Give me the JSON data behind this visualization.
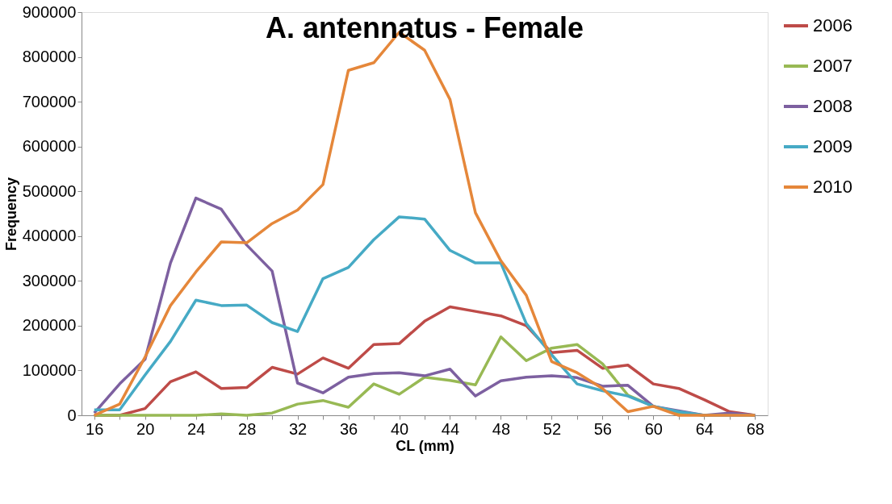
{
  "chart_data": {
    "type": "line",
    "title": "A. antennatus - Female",
    "xlabel": "CL (mm)",
    "ylabel": "Frequency",
    "categories": [
      "16",
      null,
      "20",
      null,
      "24",
      null,
      "28",
      null,
      "32",
      null,
      "36",
      null,
      "40",
      null,
      "44",
      null,
      "48",
      null,
      "52",
      null,
      "56",
      null,
      "60",
      null,
      "64",
      null,
      "68"
    ],
    "series": [
      {
        "name": "2006",
        "color": "#be4b48",
        "values": [
          0,
          0,
          15000,
          75000,
          97000,
          60000,
          62000,
          107000,
          92000,
          128000,
          105000,
          158000,
          160000,
          210000,
          242000,
          232000,
          222000,
          200000,
          140000,
          145000,
          105000,
          112000,
          70000,
          60000,
          35000,
          8000,
          0
        ]
      },
      {
        "name": "2007",
        "color": "#98b954",
        "values": [
          0,
          0,
          0,
          0,
          0,
          3000,
          0,
          5000,
          25000,
          33000,
          18000,
          70000,
          47000,
          85000,
          78000,
          68000,
          175000,
          122000,
          150000,
          158000,
          115000,
          45000,
          20000,
          5000,
          0,
          null,
          null
        ]
      },
      {
        "name": "2008",
        "color": "#7d60a0",
        "values": [
          5000,
          70000,
          125000,
          340000,
          485000,
          460000,
          380000,
          322000,
          72000,
          50000,
          85000,
          93000,
          95000,
          88000,
          103000,
          43000,
          77000,
          85000,
          88000,
          84000,
          65000,
          67000,
          20000,
          10000,
          0,
          5000,
          0
        ]
      },
      {
        "name": "2009",
        "color": "#46aac5",
        "values": [
          12000,
          12000,
          90000,
          165000,
          257000,
          245000,
          246000,
          207000,
          187000,
          305000,
          330000,
          392000,
          443000,
          438000,
          368000,
          340000,
          340000,
          205000,
          135000,
          70000,
          55000,
          43000,
          20000,
          8000,
          0,
          0,
          0
        ]
      },
      {
        "name": "2010",
        "color": "#e5873a",
        "values": [
          0,
          25000,
          130000,
          245000,
          320000,
          387000,
          385000,
          428000,
          458000,
          515000,
          770000,
          787000,
          855000,
          815000,
          705000,
          452000,
          345000,
          268000,
          120000,
          95000,
          60000,
          8000,
          20000,
          0,
          0,
          0,
          0
        ]
      }
    ],
    "ylim": [
      0,
      900000
    ],
    "yticks": [
      0,
      100000,
      200000,
      300000,
      400000,
      500000,
      600000,
      700000,
      800000,
      900000
    ],
    "grid": false,
    "legend": "right",
    "marker": "none",
    "line_style": "solid"
  }
}
